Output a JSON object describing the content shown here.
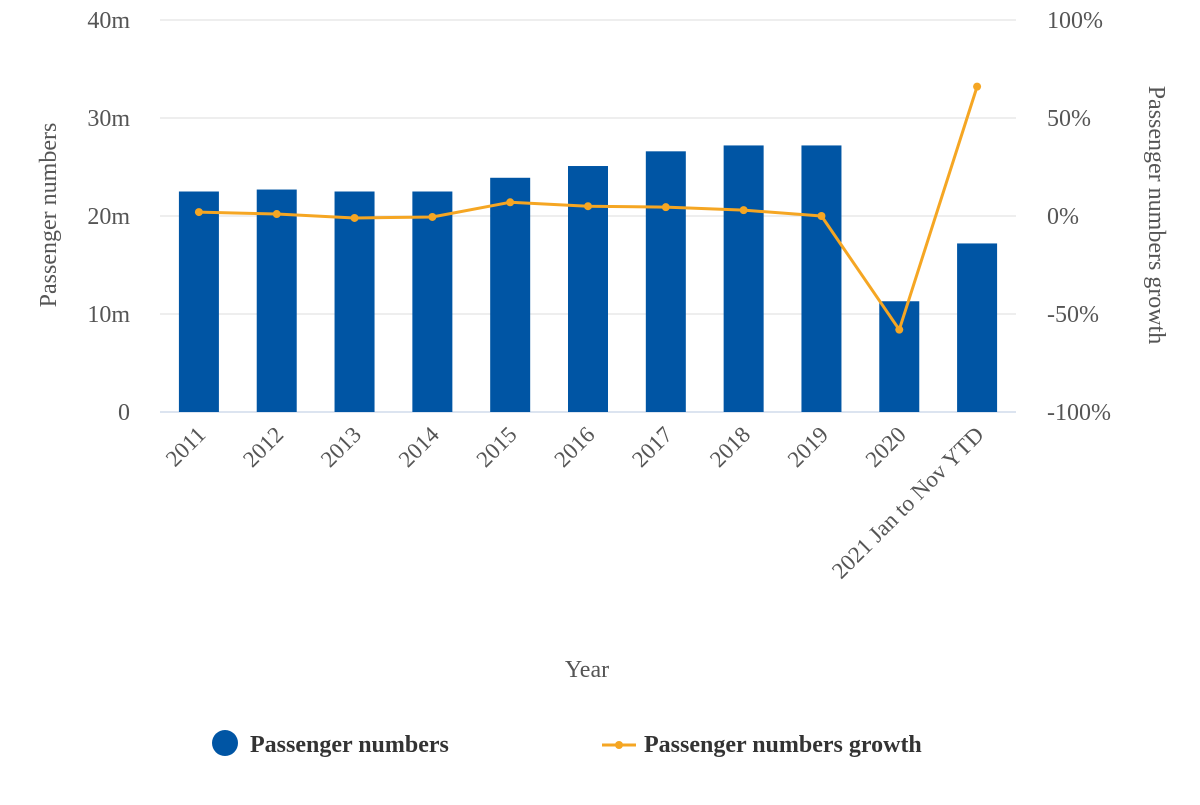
{
  "chart_data": {
    "type": "bar",
    "categories": [
      "2011",
      "2012",
      "2013",
      "2014",
      "2015",
      "2016",
      "2017",
      "2018",
      "2019",
      "2020",
      "2021 Jan to Nov YTD"
    ],
    "series": [
      {
        "name": "Passenger numbers",
        "type": "bar",
        "axis": "left",
        "color": "#0055a4",
        "values": [
          22.5,
          22.7,
          22.5,
          22.5,
          23.9,
          25.1,
          26.6,
          27.2,
          27.2,
          11.3,
          17.2
        ]
      },
      {
        "name": "Passenger numbers growth",
        "type": "line",
        "axis": "right",
        "color": "#f5a623",
        "values": [
          2,
          1,
          -1,
          -0.5,
          7,
          5,
          4.5,
          3,
          0,
          -58,
          66
        ]
      }
    ],
    "title": "",
    "xlabel": "Year",
    "ylabel": "Passenger numbers",
    "ylabel_right": "Passenger numbers growth",
    "ylim": [
      0,
      40
    ],
    "ylim_right": [
      -100,
      100
    ],
    "yticks": [
      "0",
      "10m",
      "20m",
      "30m",
      "40m"
    ],
    "yticks_right": [
      "-100%",
      "-50%",
      "0%",
      "50%",
      "100%"
    ],
    "grid": true,
    "legend": "bottom"
  }
}
